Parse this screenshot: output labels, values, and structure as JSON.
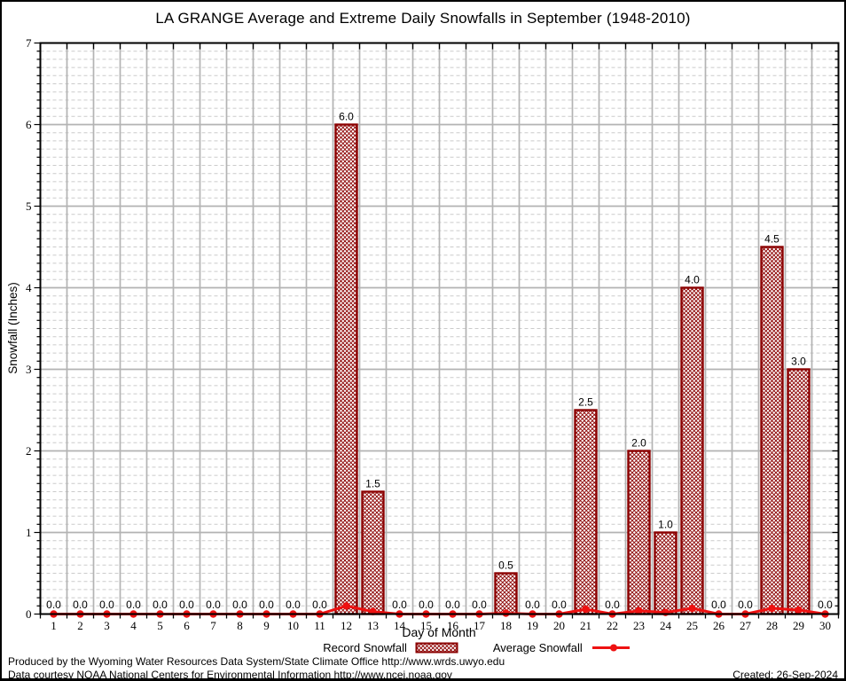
{
  "chart_data": {
    "type": "bar",
    "title": "LA GRANGE Average and Extreme Daily Snowfalls in September (1948-2010)",
    "xlabel": "Day of Month",
    "ylabel": "Snowfall (Inches)",
    "ylim": [
      0,
      7
    ],
    "y_major_step": 1,
    "y_minor_step": 0.1,
    "grid": "major solid, minor dashed horizontal",
    "legend_position": "bottom-center",
    "categories": [
      1,
      2,
      3,
      4,
      5,
      6,
      7,
      8,
      9,
      10,
      11,
      12,
      13,
      14,
      15,
      16,
      17,
      18,
      19,
      20,
      21,
      22,
      23,
      24,
      25,
      26,
      27,
      28,
      29,
      30
    ],
    "series": [
      {
        "name": "Record Snowfall",
        "type": "bar",
        "values": [
          0.0,
          0.0,
          0.0,
          0.0,
          0.0,
          0.0,
          0.0,
          0.0,
          0.0,
          0.0,
          0.0,
          6.0,
          1.5,
          0.0,
          0.0,
          0.0,
          0.0,
          0.5,
          0.0,
          0.0,
          2.5,
          0.0,
          2.0,
          1.0,
          4.0,
          0.0,
          0.0,
          4.5,
          3.0,
          0.0
        ]
      },
      {
        "name": "Average Snowfall",
        "type": "line",
        "values": [
          0,
          0,
          0,
          0,
          0,
          0,
          0,
          0,
          0,
          0,
          0,
          0.1,
          0.03,
          0,
          0,
          0,
          0,
          0.01,
          0,
          0,
          0.06,
          0,
          0.04,
          0.02,
          0.07,
          0,
          0,
          0.07,
          0.05,
          0
        ]
      }
    ]
  },
  "footer": {
    "line1": "Produced by the Wyoming Water Resources Data System/State Climate Office http://www.wrds.uwyo.edu",
    "line2": "Data courtesy NOAA National Centers for Environmental Information http://www.ncei.noaa.gov",
    "created": "Created: 26-Sep-2024"
  },
  "colors": {
    "bar_outline": "#8b0000",
    "bar_hatch": "#8b0000",
    "average_line": "#ee1111",
    "grid_major": "#b3b3b3",
    "grid_minor": "#cbcbcb",
    "axis": "#000000",
    "background": "#ffffff"
  }
}
